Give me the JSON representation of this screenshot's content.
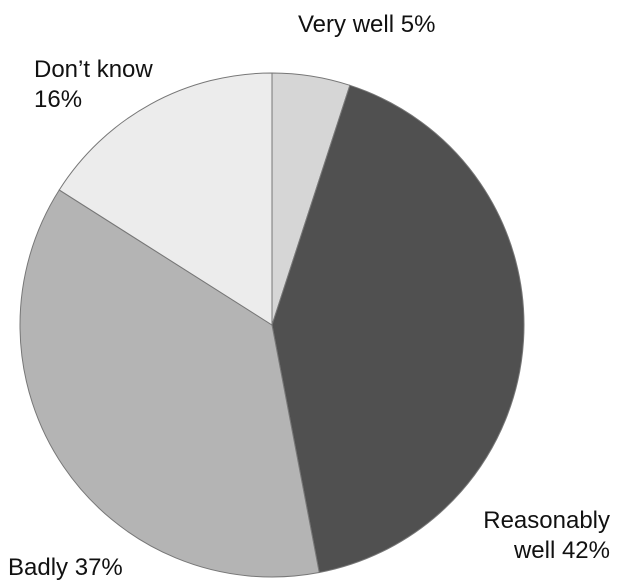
{
  "chart_data": {
    "type": "pie",
    "categories": [
      "Very well",
      "Reasonably well",
      "Badly",
      "Don’t know"
    ],
    "values": [
      5,
      42,
      37,
      16
    ],
    "value_labels": [
      "5%",
      "42%",
      "37%",
      "16%"
    ],
    "colors": [
      "#d6d6d6",
      "#505050",
      "#b4b4b4",
      "#ececec"
    ]
  }
}
